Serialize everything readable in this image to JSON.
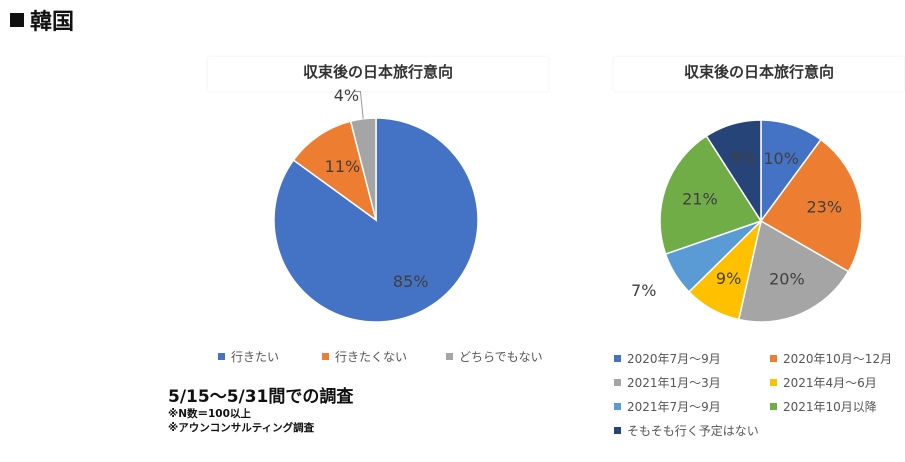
{
  "page": {
    "heading": "韓国"
  },
  "notes": {
    "period": "5/15〜5/31間での調査",
    "n_count": "※N数＝100以上",
    "source": "※アウンコンサルティング調査"
  },
  "chart_data": [
    {
      "type": "pie",
      "title": "収束後の日本旅行意向",
      "labels": [
        "行きたい",
        "行きたくない",
        "どちらでもない"
      ],
      "values": [
        85,
        11,
        4
      ],
      "value_labels": [
        "85%",
        "11%",
        "4%"
      ],
      "colors": [
        "#4472C4",
        "#ED7D31",
        "#A5A5A5"
      ],
      "legend": "bottom"
    },
    {
      "type": "pie",
      "title": "収束後の日本旅行意向",
      "labels": [
        "2020年7月〜9月",
        "2020年10月〜12月",
        "2021年1月〜3月",
        "2021年4月〜6月",
        "2021年7月〜9月",
        "2021年10月以降",
        "そもそも行く予定はない"
      ],
      "values": [
        10,
        23,
        20,
        9,
        7,
        21,
        9
      ],
      "value_labels": [
        "10%",
        "23%",
        "20%",
        "9%",
        "7%",
        "21%",
        "9%"
      ],
      "colors": [
        "#4472C4",
        "#ED7D31",
        "#A5A5A5",
        "#FFC000",
        "#5B9BD5",
        "#70AD47",
        "#264478"
      ],
      "legend": "bottom"
    }
  ]
}
